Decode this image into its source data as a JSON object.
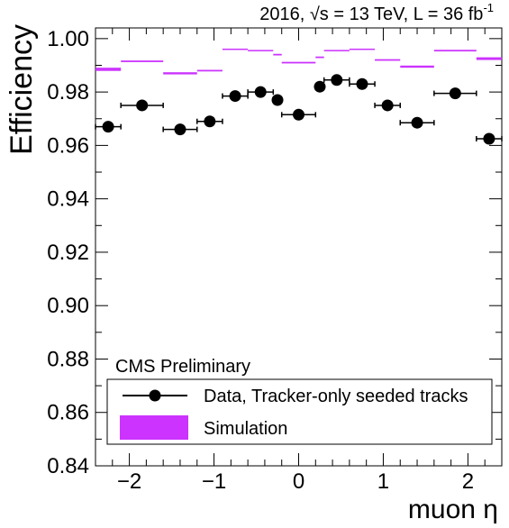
{
  "chart_data": {
    "type": "scatter",
    "header": "2016, √s = 13 TeV, L = 36 fb",
    "header_sup": "-1",
    "xlabel": "muon η",
    "ylabel": "Efficiency",
    "xlim": [
      -2.4,
      2.4
    ],
    "ylim": [
      0.84,
      1.004
    ],
    "y_ticks": [
      "0.84",
      "0.86",
      "0.88",
      "0.90",
      "0.92",
      "0.94",
      "0.96",
      "0.98",
      "1.00"
    ],
    "x_ticks": [
      "−2",
      "−1",
      "0",
      "1",
      "2"
    ],
    "experiment_label": "CMS Preliminary",
    "legend": {
      "placement": "bottom",
      "data_label": "Data, Tracker-only seeded tracks",
      "sim_label": "Simulation",
      "sim_color": "#cc33ff"
    },
    "data_series": {
      "name": "Data, Tracker-only seeded tracks",
      "points": [
        {
          "x": -2.25,
          "xerr": 0.15,
          "y": 0.967
        },
        {
          "x": -1.85,
          "xerr": 0.25,
          "y": 0.975
        },
        {
          "x": -1.4,
          "xerr": 0.2,
          "y": 0.966
        },
        {
          "x": -1.05,
          "xerr": 0.15,
          "y": 0.969
        },
        {
          "x": -0.75,
          "xerr": 0.15,
          "y": 0.9785
        },
        {
          "x": -0.45,
          "xerr": 0.15,
          "y": 0.98
        },
        {
          "x": -0.25,
          "xerr": 0.05,
          "y": 0.977
        },
        {
          "x": 0.0,
          "xerr": 0.2,
          "y": 0.9715
        },
        {
          "x": 0.25,
          "xerr": 0.05,
          "y": 0.982
        },
        {
          "x": 0.45,
          "xerr": 0.15,
          "y": 0.9845
        },
        {
          "x": 0.75,
          "xerr": 0.15,
          "y": 0.983
        },
        {
          "x": 1.05,
          "xerr": 0.15,
          "y": 0.975
        },
        {
          "x": 1.4,
          "xerr": 0.2,
          "y": 0.9685
        },
        {
          "x": 1.85,
          "xerr": 0.25,
          "y": 0.9795
        },
        {
          "x": 2.25,
          "xerr": 0.15,
          "y": 0.9625
        }
      ]
    },
    "sim_series": {
      "name": "Simulation",
      "bins": [
        {
          "xlo": -2.4,
          "xhi": -2.1,
          "y": 0.9885,
          "err": 0.0006
        },
        {
          "xlo": -2.1,
          "xhi": -1.6,
          "y": 0.9915,
          "err": 0.0003
        },
        {
          "xlo": -1.6,
          "xhi": -1.2,
          "y": 0.987,
          "err": 0.0004
        },
        {
          "xlo": -1.2,
          "xhi": -0.9,
          "y": 0.988,
          "err": 0.0003
        },
        {
          "xlo": -0.9,
          "xhi": -0.6,
          "y": 0.996,
          "err": 0.0002
        },
        {
          "xlo": -0.6,
          "xhi": -0.3,
          "y": 0.9955,
          "err": 0.0002
        },
        {
          "xlo": -0.3,
          "xhi": -0.2,
          "y": 0.994,
          "err": 0.0003
        },
        {
          "xlo": -0.2,
          "xhi": 0.2,
          "y": 0.991,
          "err": 0.0003
        },
        {
          "xlo": 0.2,
          "xhi": 0.3,
          "y": 0.993,
          "err": 0.0003
        },
        {
          "xlo": 0.3,
          "xhi": 0.6,
          "y": 0.9955,
          "err": 0.0002
        },
        {
          "xlo": 0.6,
          "xhi": 0.9,
          "y": 0.996,
          "err": 0.0002
        },
        {
          "xlo": 0.9,
          "xhi": 1.2,
          "y": 0.992,
          "err": 0.0003
        },
        {
          "xlo": 1.2,
          "xhi": 1.6,
          "y": 0.9895,
          "err": 0.0004
        },
        {
          "xlo": 1.6,
          "xhi": 2.1,
          "y": 0.9955,
          "err": 0.0003
        },
        {
          "xlo": 2.1,
          "xhi": 2.4,
          "y": 0.9925,
          "err": 0.0005
        }
      ]
    }
  }
}
